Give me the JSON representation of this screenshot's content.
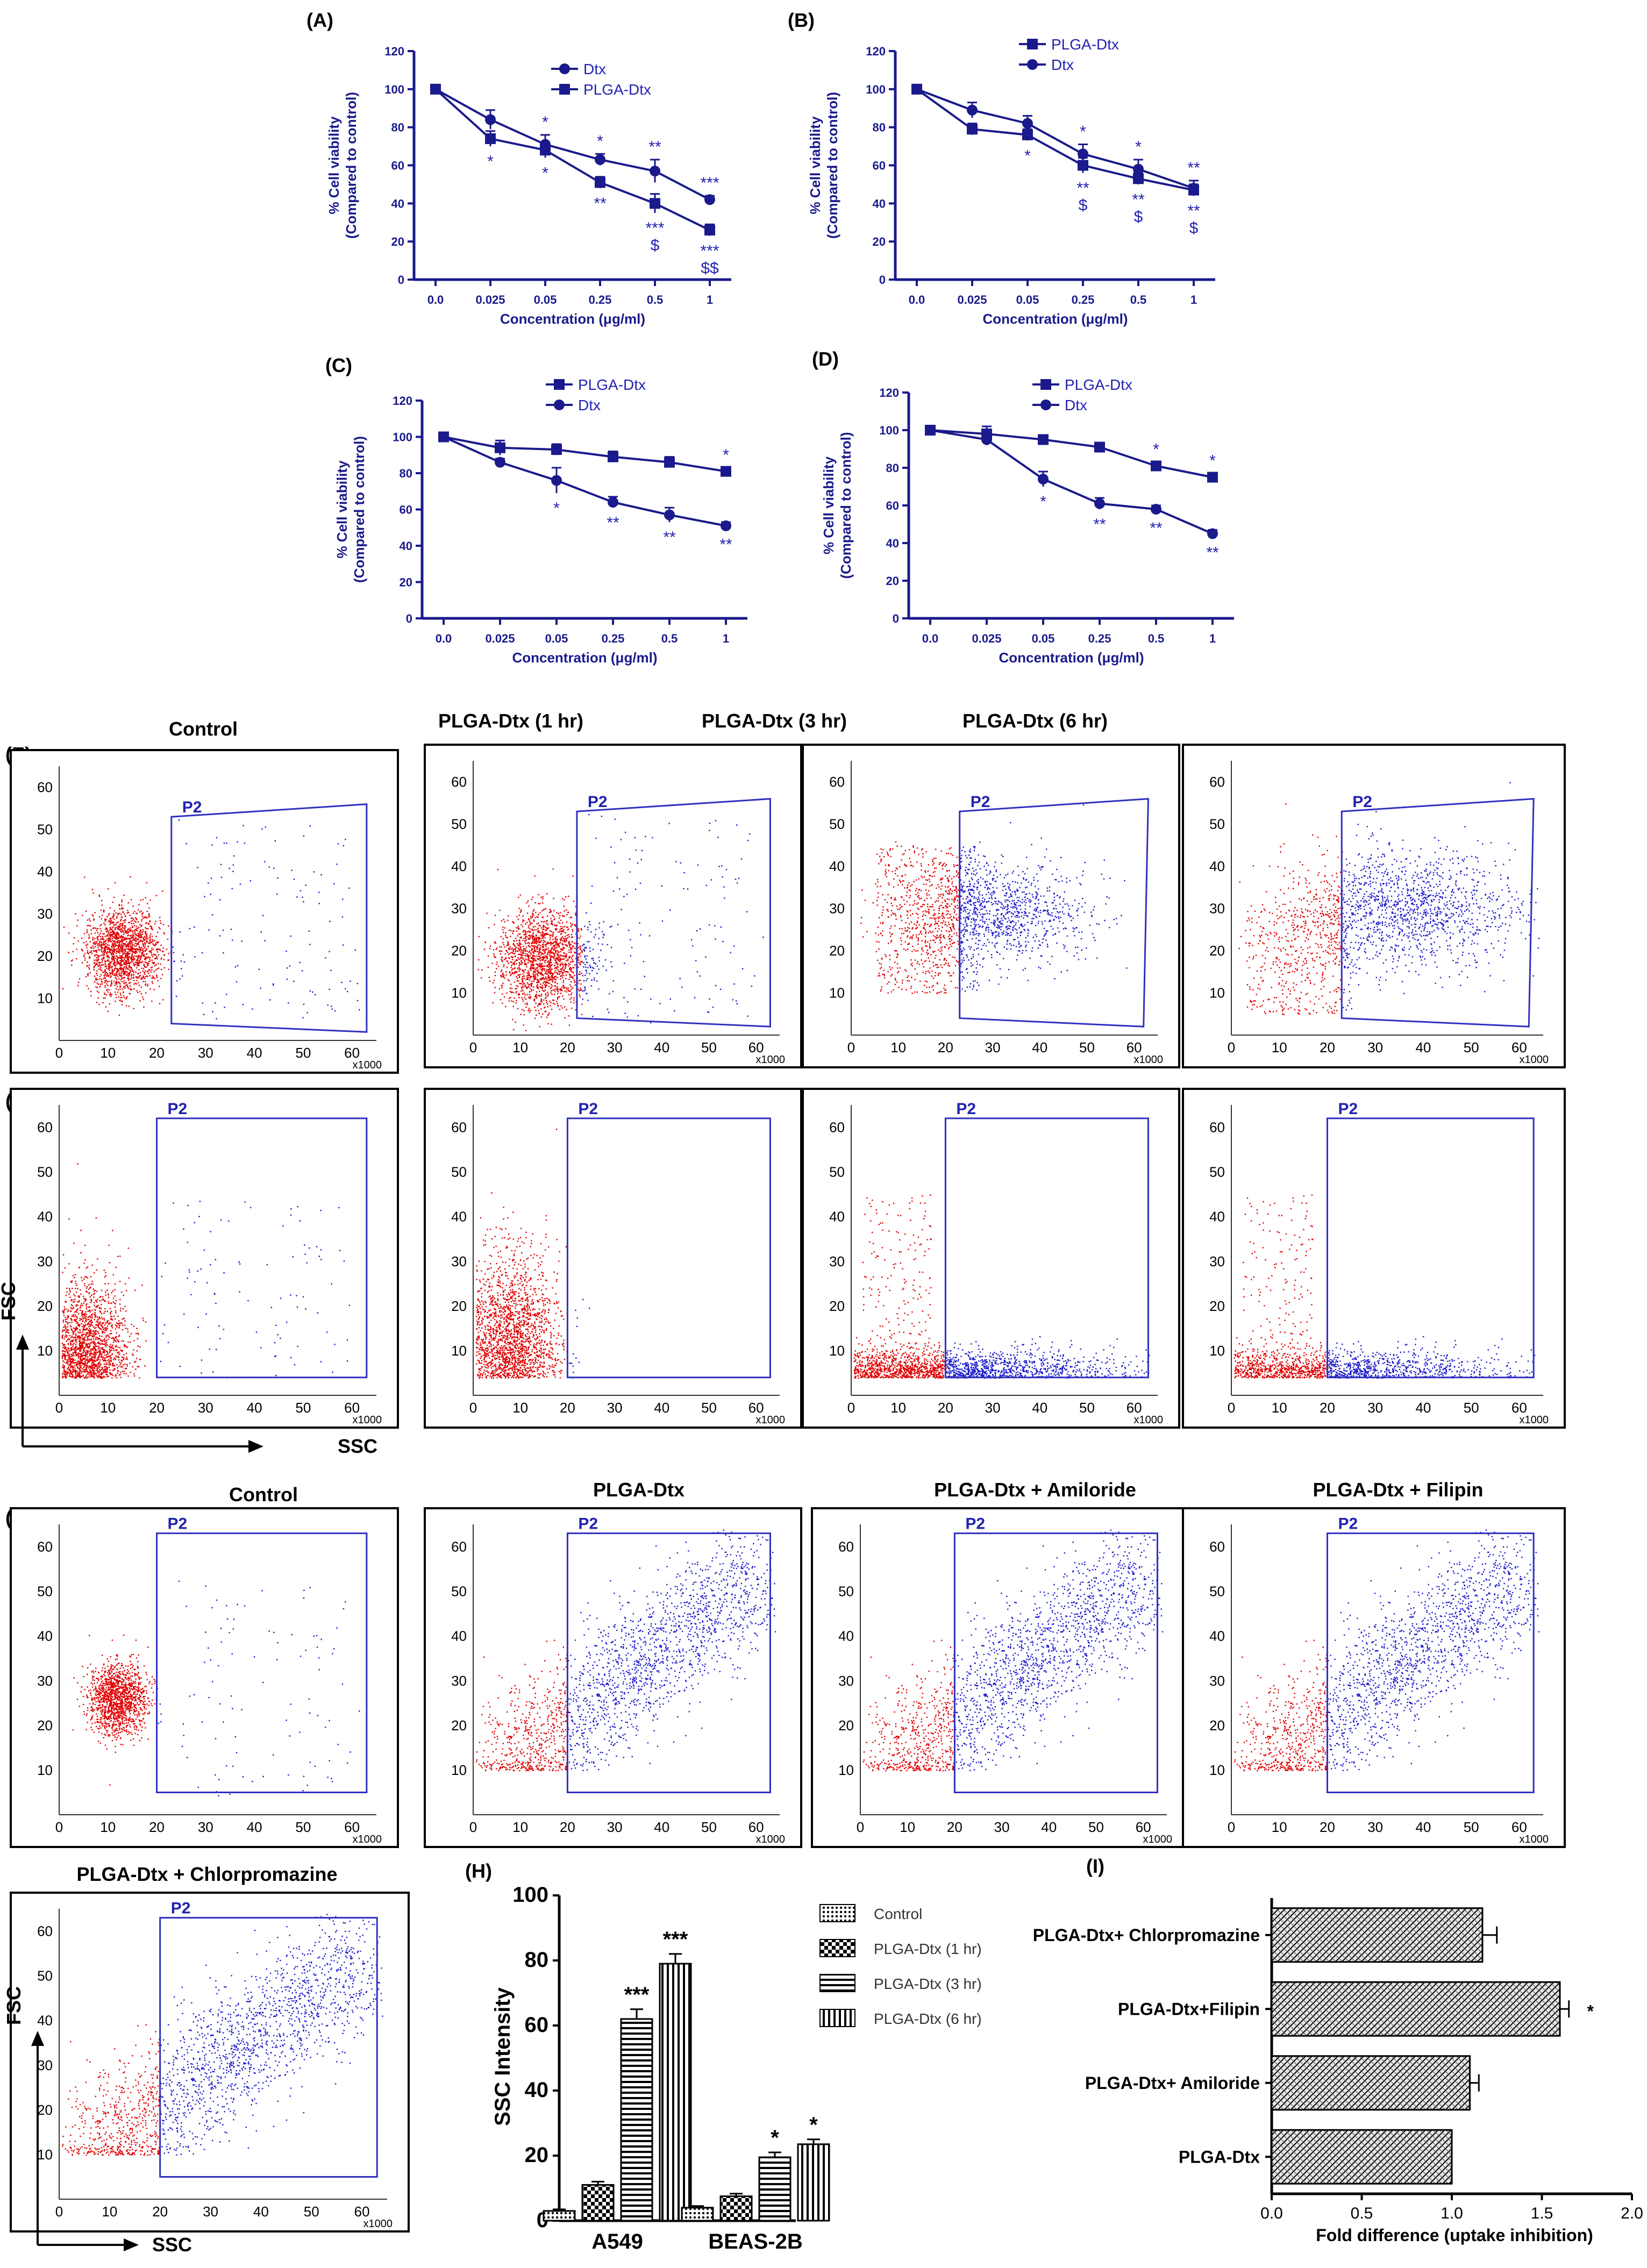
{
  "chart_data": [
    {
      "id": "A",
      "type": "line",
      "panel_label": "(A)",
      "xlabel": "Concentration (μg/ml)",
      "ylabel_line1": "% Cell viability",
      "ylabel_line2": "(Compared to control)",
      "categories": [
        "0.0",
        "0.025",
        "0.05",
        "0.25",
        "0.5",
        "1"
      ],
      "ylim": [
        0,
        120
      ],
      "yticks": [
        0,
        20,
        40,
        60,
        80,
        100,
        120
      ],
      "legend_position": "top-right",
      "series": [
        {
          "name": "Dtx",
          "marker": "circle",
          "values": [
            100,
            84,
            71,
            63,
            57,
            42
          ],
          "errors": [
            0,
            5,
            5,
            3,
            6,
            2
          ]
        },
        {
          "name": "PLGA-Dtx",
          "marker": "square",
          "values": [
            100,
            74,
            68,
            51,
            40,
            26
          ],
          "errors": [
            0,
            4,
            4,
            3,
            5,
            3
          ]
        }
      ],
      "annotations": [
        {
          "series": 0,
          "index": 1,
          "pos": "above",
          "text": ""
        },
        {
          "series": 0,
          "index": 2,
          "pos": "above",
          "text": "*"
        },
        {
          "series": 0,
          "index": 3,
          "pos": "above",
          "text": "*"
        },
        {
          "series": 0,
          "index": 4,
          "pos": "above",
          "text": "**"
        },
        {
          "series": 0,
          "index": 5,
          "pos": "above",
          "text": "***"
        },
        {
          "series": 1,
          "index": 1,
          "pos": "below",
          "text": "*"
        },
        {
          "series": 1,
          "index": 2,
          "pos": "below",
          "text": "*"
        },
        {
          "series": 1,
          "index": 3,
          "pos": "below",
          "text": "**"
        },
        {
          "series": 1,
          "index": 4,
          "pos": "below",
          "text": "***"
        },
        {
          "series": 1,
          "index": 4,
          "pos": "below2",
          "text": "$"
        },
        {
          "series": 1,
          "index": 5,
          "pos": "below",
          "text": "***"
        },
        {
          "series": 1,
          "index": 5,
          "pos": "below2",
          "text": "$$"
        }
      ]
    },
    {
      "id": "B",
      "type": "line",
      "panel_label": "(B)",
      "xlabel": "Concentration (μg/ml)",
      "ylabel_line1": "% Cell viability",
      "ylabel_line2": "(Compared to control)",
      "categories": [
        "0.0",
        "0.025",
        "0.05",
        "0.25",
        "0.5",
        "1"
      ],
      "ylim": [
        0,
        120
      ],
      "yticks": [
        0,
        20,
        40,
        60,
        80,
        100,
        120
      ],
      "legend_position": "top-left",
      "series": [
        {
          "name": "PLGA-Dtx",
          "marker": "square",
          "values": [
            100,
            79,
            76,
            60,
            53,
            47
          ],
          "errors": [
            0,
            3,
            3,
            4,
            3,
            3
          ]
        },
        {
          "name": "Dtx",
          "marker": "circle",
          "values": [
            100,
            89,
            82,
            66,
            58,
            48
          ],
          "errors": [
            0,
            4,
            4,
            5,
            5,
            4
          ]
        }
      ],
      "annotations": [
        {
          "series": 0,
          "index": 2,
          "pos": "below",
          "text": "*"
        },
        {
          "series": 0,
          "index": 3,
          "pos": "below",
          "text": "**"
        },
        {
          "series": 0,
          "index": 3,
          "pos": "below2",
          "text": "$"
        },
        {
          "series": 0,
          "index": 4,
          "pos": "below",
          "text": "**"
        },
        {
          "series": 0,
          "index": 4,
          "pos": "below2",
          "text": "$"
        },
        {
          "series": 0,
          "index": 5,
          "pos": "below",
          "text": "**"
        },
        {
          "series": 0,
          "index": 5,
          "pos": "below2",
          "text": "$"
        },
        {
          "series": 1,
          "index": 3,
          "pos": "above",
          "text": "*"
        },
        {
          "series": 1,
          "index": 4,
          "pos": "above",
          "text": "*"
        },
        {
          "series": 1,
          "index": 5,
          "pos": "above",
          "text": "**"
        }
      ]
    },
    {
      "id": "C",
      "type": "line",
      "panel_label": "(C)",
      "xlabel": "Concentration (μg/ml)",
      "ylabel_line1": "% Cell viability",
      "ylabel_line2": "(Compared to control)",
      "categories": [
        "0.0",
        "0.025",
        "0.05",
        "0.25",
        "0.5",
        "1"
      ],
      "ylim": [
        0,
        120
      ],
      "yticks": [
        0,
        20,
        40,
        60,
        80,
        100,
        120
      ],
      "legend_position": "top-center",
      "series": [
        {
          "name": "PLGA-Dtx",
          "marker": "square",
          "values": [
            100,
            94,
            93,
            89,
            86,
            81
          ],
          "errors": [
            0,
            4,
            3,
            3,
            3,
            2
          ]
        },
        {
          "name": "Dtx",
          "marker": "circle",
          "values": [
            100,
            86,
            76,
            64,
            57,
            51
          ],
          "errors": [
            0,
            2,
            7,
            3,
            4,
            2
          ]
        }
      ],
      "annotations": [
        {
          "series": 0,
          "index": 5,
          "pos": "above",
          "text": "*"
        },
        {
          "series": 1,
          "index": 2,
          "pos": "below",
          "text": "*"
        },
        {
          "series": 1,
          "index": 3,
          "pos": "below",
          "text": "**"
        },
        {
          "series": 1,
          "index": 4,
          "pos": "below",
          "text": "**"
        },
        {
          "series": 1,
          "index": 5,
          "pos": "below",
          "text": "**"
        }
      ]
    },
    {
      "id": "D",
      "type": "line",
      "panel_label": "(D)",
      "xlabel": "Concentration (μg/ml)",
      "ylabel_line1": "% Cell viability",
      "ylabel_line2": "(Compared to control)",
      "categories": [
        "0.0",
        "0.025",
        "0.05",
        "0.25",
        "0.5",
        "1"
      ],
      "ylim": [
        0,
        120
      ],
      "yticks": [
        0,
        20,
        40,
        60,
        80,
        100,
        120
      ],
      "legend_position": "top-center",
      "series": [
        {
          "name": "PLGA-Dtx",
          "marker": "square",
          "values": [
            100,
            98,
            95,
            91,
            81,
            75
          ],
          "errors": [
            0,
            4,
            2,
            2,
            2,
            2
          ]
        },
        {
          "name": "Dtx",
          "marker": "circle",
          "values": [
            100,
            95,
            74,
            61,
            58,
            45
          ],
          "errors": [
            0,
            3,
            4,
            3,
            2,
            2
          ]
        }
      ],
      "annotations": [
        {
          "series": 0,
          "index": 4,
          "pos": "above",
          "text": "*"
        },
        {
          "series": 0,
          "index": 5,
          "pos": "above",
          "text": "*"
        },
        {
          "series": 1,
          "index": 2,
          "pos": "below",
          "text": "*"
        },
        {
          "series": 1,
          "index": 3,
          "pos": "below",
          "text": "**"
        },
        {
          "series": 1,
          "index": 4,
          "pos": "below",
          "text": "**"
        },
        {
          "series": 1,
          "index": 5,
          "pos": "below",
          "text": "**"
        }
      ]
    },
    {
      "id": "H",
      "type": "bar",
      "panel_label": "(H)",
      "ylabel": "SSC Intensity",
      "categories": [
        "A549",
        "BEAS-2B"
      ],
      "ylim": [
        0,
        100
      ],
      "yticks": [
        0,
        20,
        40,
        60,
        80,
        100
      ],
      "legend_position": "top-right",
      "series": [
        {
          "name": "Control",
          "pattern": "dots",
          "values": [
            3,
            4
          ],
          "errors": [
            0.5,
            0.5
          ],
          "stars": [
            "",
            ""
          ]
        },
        {
          "name": "PLGA-Dtx (1 hr)",
          "pattern": "check",
          "values": [
            11,
            7.5
          ],
          "errors": [
            1,
            0.8
          ],
          "stars": [
            "",
            ""
          ]
        },
        {
          "name": "PLGA-Dtx (3 hr)",
          "pattern": "hstripe",
          "values": [
            62,
            19.5
          ],
          "errors": [
            3,
            1.5
          ],
          "stars": [
            "***",
            "*"
          ]
        },
        {
          "name": "PLGA-Dtx (6 hr)",
          "pattern": "vstripe",
          "values": [
            79,
            23.5
          ],
          "errors": [
            3,
            1.5
          ],
          "stars": [
            "***",
            "*"
          ]
        }
      ]
    },
    {
      "id": "I",
      "type": "bar",
      "orientation": "horizontal",
      "panel_label": "(I)",
      "xlabel": "Fold difference (uptake inhibition)",
      "categories": [
        "PLGA-Dtx+ Chlorpromazine",
        "PLGA-Dtx+Filipin",
        "PLGA-Dtx+ Amiloride",
        "PLGA-Dtx"
      ],
      "values": [
        1.17,
        1.6,
        1.1,
        1.0
      ],
      "errors": [
        0.08,
        0.05,
        0.05,
        0
      ],
      "stars": [
        "",
        "*",
        "",
        ""
      ],
      "xlim": [
        0,
        2.0
      ],
      "xticks": [
        "0.0",
        "0.5",
        "1.0",
        "1.5",
        "2.0"
      ]
    }
  ],
  "flow_panels": {
    "gate_label": "P2",
    "x_axis_unit": "x1000",
    "axis_ticks_x": [
      "0",
      "10",
      "20",
      "30",
      "40",
      "50",
      "60"
    ],
    "axis_ticks_y": [
      "10",
      "20",
      "30",
      "40",
      "50",
      "60"
    ],
    "row_labels": [
      "(E)",
      "(F)",
      "(G)"
    ],
    "row_e_titles": [
      "Control",
      "PLGA-Dtx (1 hr)",
      "PLGA-Dtx (3 hr)",
      "PLGA-Dtx (6 hr)"
    ],
    "row_g_titles": [
      "Control",
      "PLGA-Dtx",
      "PLGA-Dtx + Amiloride",
      "PLGA-Dtx + Filipin"
    ],
    "last_title": "PLGA-Dtx + Chlorpromazine",
    "fsc_label": "FSC",
    "ssc_label": "SSC"
  }
}
